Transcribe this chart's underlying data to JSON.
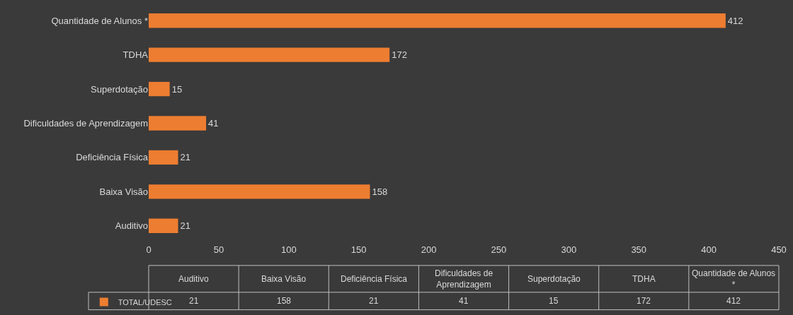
{
  "chart_data": {
    "type": "bar",
    "orientation": "horizontal",
    "categories": [
      "Quantidade de Alunos *",
      "TDHA",
      "Superdotação",
      "Dificuldades de Aprendizagem",
      "Deficiência Física",
      "Baixa Visão",
      "Auditivo"
    ],
    "series": [
      {
        "name": "TOTAL/UDESC",
        "color": "#ed7d31",
        "values": [
          412,
          172,
          15,
          41,
          21,
          158,
          21
        ],
        "value_labels": [
          "412",
          "172",
          "15",
          "41",
          "21",
          "158",
          "21"
        ]
      }
    ],
    "xlim": [
      0,
      450
    ],
    "xticks": [
      0,
      50,
      100,
      150,
      200,
      250,
      300,
      350,
      400,
      450
    ],
    "data_labels": true,
    "legend": "bottom",
    "grid": false
  }
}
